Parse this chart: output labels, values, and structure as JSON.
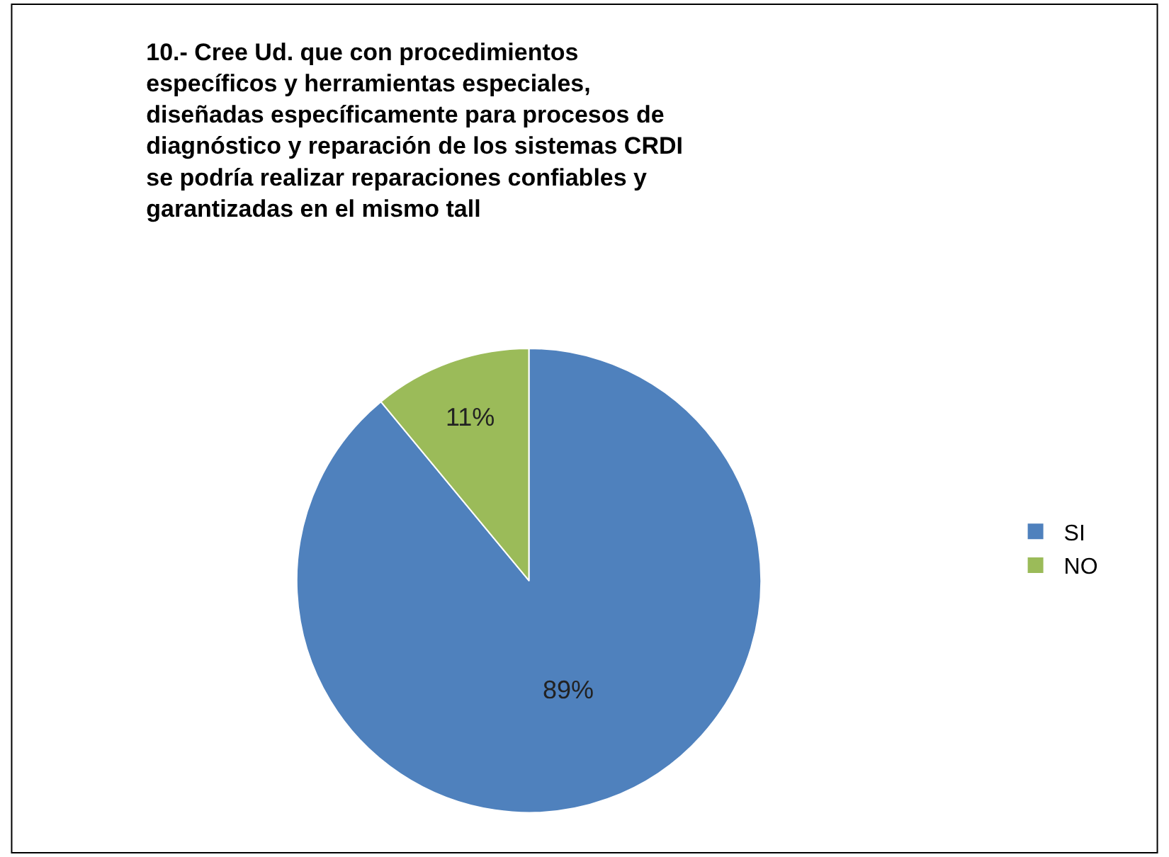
{
  "chart_data": {
    "type": "pie",
    "title": "10.- Cree Ud. que con procedimientos específicos y herramientas especiales, diseñadas específicamente para procesos de diagnóstico y reparación de los sistemas CRDI se podría realizar reparaciones confiables y garantizadas en el mismo tall",
    "categories": [
      "SI",
      "NO"
    ],
    "values": [
      89,
      11
    ],
    "colors": [
      "#4f81bd",
      "#9bbb59"
    ],
    "value_labels": [
      "89%",
      "11%"
    ],
    "legend": "right"
  }
}
